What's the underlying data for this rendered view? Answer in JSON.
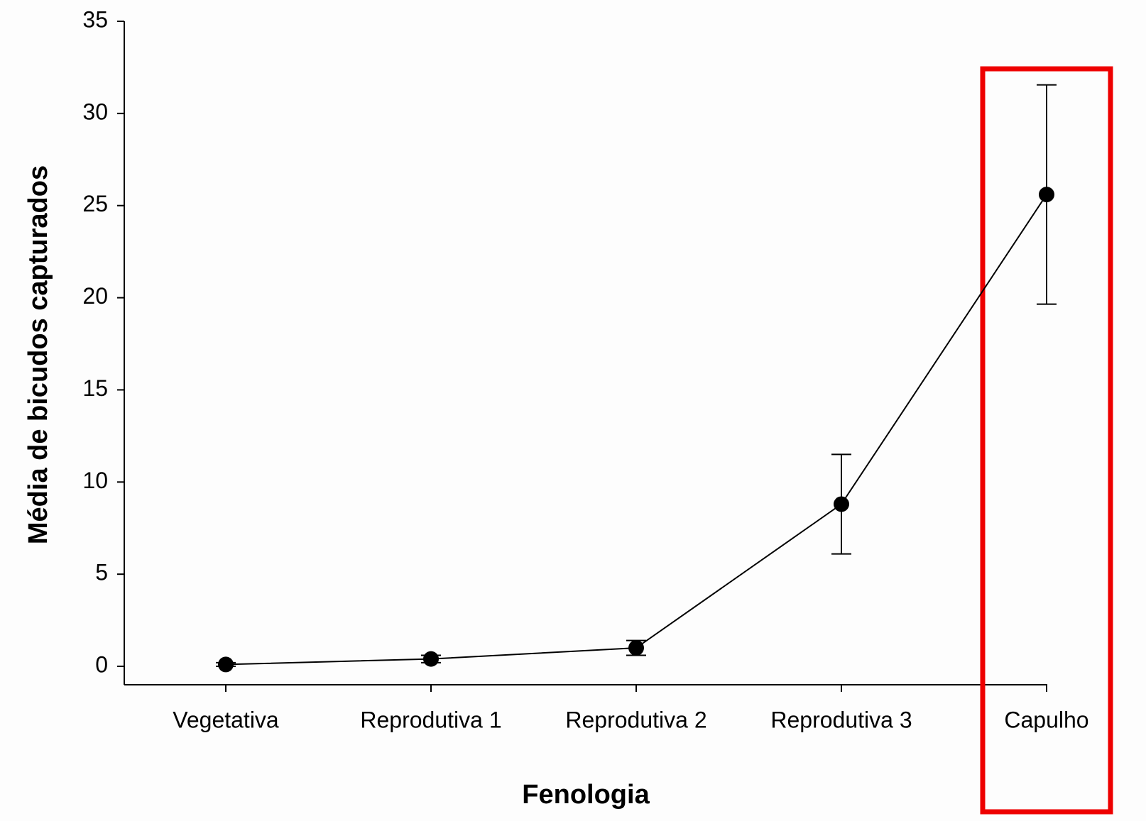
{
  "chart_data": {
    "type": "line",
    "x_label": "Fenologia",
    "y_label": "Média de bicudos capturados",
    "categories": [
      "Vegetativa",
      "Reprodutiva 1",
      "Reprodutiva 2",
      "Reprodutiva 3",
      "Capulho"
    ],
    "values": [
      0.1,
      0.4,
      1.0,
      8.8,
      25.6
    ],
    "errors": [
      0.1,
      0.2,
      0.4,
      2.7,
      5.95
    ],
    "color": "#000000",
    "ylim": [
      -1,
      35
    ],
    "yticks": [
      0,
      5,
      10,
      15,
      20,
      25,
      30,
      35
    ],
    "grid": false
  }
}
